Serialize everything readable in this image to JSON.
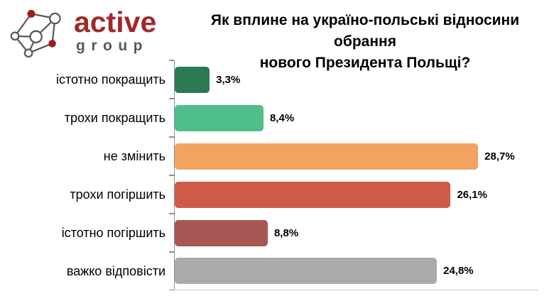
{
  "logo": {
    "brand": "active",
    "subtitle": "group",
    "brand_color": "#A1282A",
    "subtitle_color": "#58595B",
    "icon": "network-graph-icon",
    "icon_red_node_color": "#9E1B1E",
    "icon_stroke_color": "#5A5A5A"
  },
  "header": {
    "title_line1": "Як вплине на україно-польські відносини обрання",
    "title_line2": "нового Президента Польщі?"
  },
  "chart_data": {
    "type": "bar",
    "orientation": "horizontal",
    "title": "Як вплине на україно-польські відносини обрання нового Президента Польщі?",
    "categories": [
      "істотно покращить",
      "трохи покращить",
      "не змінить",
      "трохи погіршить",
      "істотно погіршить",
      "важко відповісти"
    ],
    "values": [
      3.3,
      8.4,
      28.7,
      26.1,
      8.8,
      24.8
    ],
    "value_labels": [
      "3,3%",
      "8,4%",
      "28,7%",
      "26,1%",
      "8,8%",
      "24,8%"
    ],
    "colors": [
      "#2C7A52",
      "#4FBE88",
      "#F2A35F",
      "#CE5A47",
      "#A85654",
      "#ABABAB"
    ],
    "xlim": [
      0,
      34.4
    ],
    "grid": false,
    "legend": false,
    "axis_color": "#8F8F8F"
  }
}
